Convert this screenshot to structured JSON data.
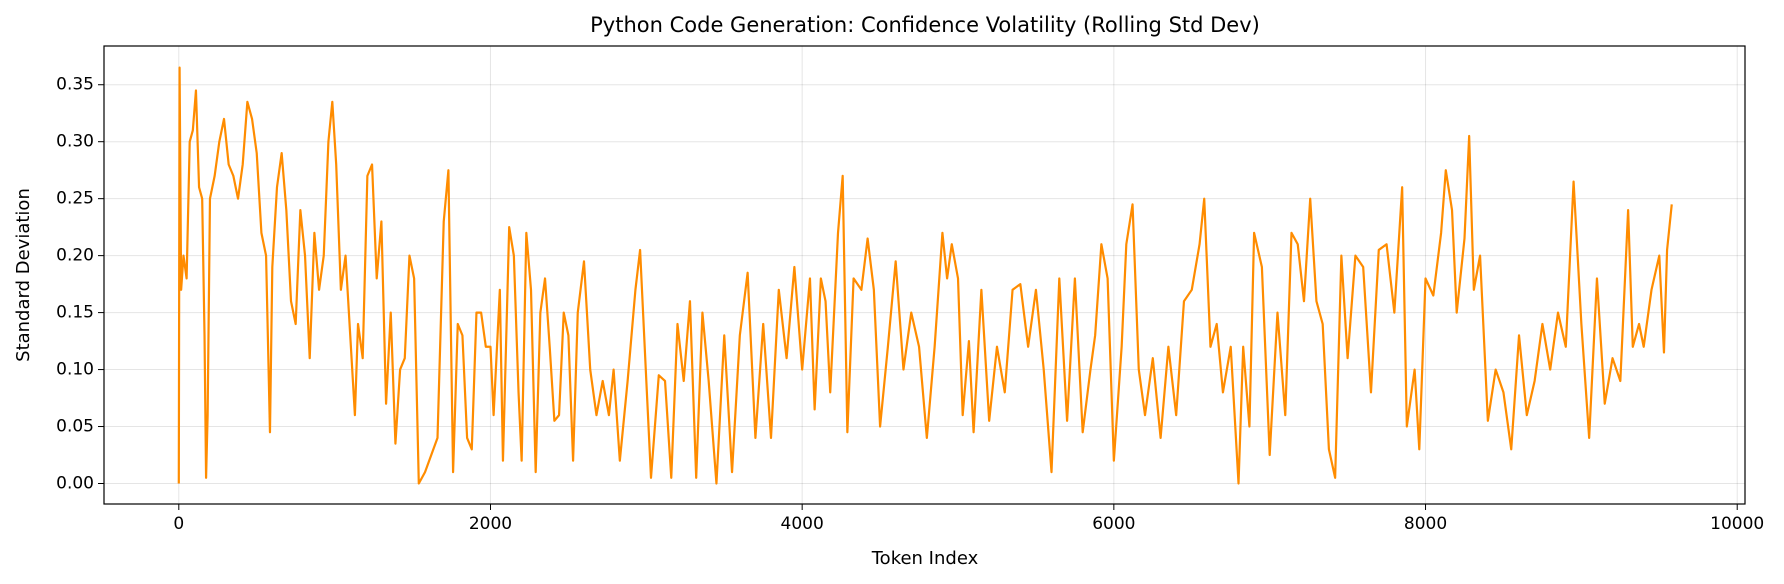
{
  "chart_data": {
    "type": "line",
    "title": "Python Code Generation: Confidence Volatility (Rolling Std Dev)",
    "x_label": "Token Index",
    "y_label": "Standard Deviation",
    "grid": true,
    "xlim": [
      -480,
      10050
    ],
    "ylim": [
      -0.018,
      0.384
    ],
    "xticks": [
      0,
      2000,
      4000,
      6000,
      8000,
      10000
    ],
    "yticks": [
      {
        "value": 0,
        "label": "0.00"
      },
      {
        "value": 0.05,
        "label": "0.05"
      },
      {
        "value": 0.1,
        "label": "0.10"
      },
      {
        "value": 0.15,
        "label": "0.15"
      },
      {
        "value": 0.2,
        "label": "0.20"
      },
      {
        "value": 0.25,
        "label": "0.25"
      },
      {
        "value": 0.3,
        "label": "0.30"
      },
      {
        "value": 0.35,
        "label": "0.35"
      }
    ],
    "series": [
      {
        "color": "#ff8c00",
        "x": [
          0,
          5,
          15,
          30,
          50,
          70,
          90,
          110,
          130,
          150,
          165,
          175,
          185,
          200,
          230,
          260,
          290,
          320,
          350,
          380,
          410,
          440,
          470,
          500,
          530,
          560,
          585,
          600,
          630,
          660,
          690,
          720,
          750,
          780,
          810,
          840,
          870,
          900,
          930,
          960,
          985,
          1010,
          1040,
          1070,
          1100,
          1130,
          1150,
          1180,
          1210,
          1240,
          1270,
          1300,
          1330,
          1360,
          1390,
          1420,
          1450,
          1480,
          1510,
          1540,
          1580,
          1620,
          1660,
          1700,
          1730,
          1760,
          1790,
          1820,
          1850,
          1880,
          1910,
          1940,
          1970,
          2000,
          2020,
          2060,
          2080,
          2120,
          2150,
          2180,
          2200,
          2230,
          2260,
          2290,
          2320,
          2350,
          2380,
          2410,
          2440,
          2470,
          2500,
          2530,
          2560,
          2600,
          2640,
          2680,
          2720,
          2760,
          2790,
          2830,
          2880,
          2930,
          2960,
          3000,
          3030,
          3080,
          3120,
          3160,
          3200,
          3240,
          3280,
          3320,
          3360,
          3400,
          3450,
          3500,
          3550,
          3600,
          3650,
          3700,
          3750,
          3800,
          3850,
          3900,
          3950,
          4000,
          4050,
          4080,
          4120,
          4150,
          4180,
          4230,
          4260,
          4290,
          4330,
          4380,
          4420,
          4460,
          4500,
          4550,
          4600,
          4650,
          4700,
          4750,
          4800,
          4850,
          4900,
          4930,
          4960,
          5000,
          5030,
          5070,
          5100,
          5150,
          5200,
          5250,
          5300,
          5350,
          5400,
          5450,
          5500,
          5550,
          5600,
          5650,
          5700,
          5750,
          5800,
          5850,
          5880,
          5920,
          5960,
          6000,
          6050,
          6080,
          6120,
          6160,
          6200,
          6250,
          6300,
          6350,
          6400,
          6450,
          6500,
          6550,
          6580,
          6620,
          6660,
          6700,
          6750,
          6800,
          6830,
          6870,
          6900,
          6950,
          7000,
          7050,
          7100,
          7140,
          7180,
          7220,
          7260,
          7300,
          7340,
          7380,
          7420,
          7460,
          7500,
          7550,
          7600,
          7650,
          7700,
          7750,
          7800,
          7850,
          7880,
          7930,
          7960,
          8000,
          8050,
          8100,
          8130,
          8170,
          8200,
          8250,
          8280,
          8310,
          8350,
          8400,
          8450,
          8500,
          8550,
          8600,
          8650,
          8700,
          8750,
          8800,
          8850,
          8900,
          8950,
          9000,
          9050,
          9100,
          9150,
          9200,
          9250,
          9300,
          9330,
          9370,
          9400,
          9450,
          9500,
          9530,
          9550,
          9580
        ],
        "values": [
          0,
          0.365,
          0.17,
          0.2,
          0.18,
          0.3,
          0.31,
          0.345,
          0.26,
          0.25,
          0.13,
          0.005,
          0.06,
          0.25,
          0.27,
          0.3,
          0.32,
          0.28,
          0.27,
          0.25,
          0.28,
          0.335,
          0.32,
          0.29,
          0.22,
          0.2,
          0.045,
          0.19,
          0.26,
          0.29,
          0.24,
          0.16,
          0.14,
          0.24,
          0.2,
          0.11,
          0.22,
          0.17,
          0.2,
          0.3,
          0.335,
          0.28,
          0.17,
          0.2,
          0.13,
          0.06,
          0.14,
          0.11,
          0.27,
          0.28,
          0.18,
          0.23,
          0.07,
          0.15,
          0.035,
          0.1,
          0.11,
          0.2,
          0.18,
          0.0,
          0.01,
          0.025,
          0.04,
          0.23,
          0.275,
          0.01,
          0.14,
          0.13,
          0.04,
          0.03,
          0.15,
          0.15,
          0.12,
          0.12,
          0.06,
          0.17,
          0.02,
          0.225,
          0.2,
          0.08,
          0.02,
          0.22,
          0.17,
          0.01,
          0.15,
          0.18,
          0.12,
          0.055,
          0.06,
          0.15,
          0.13,
          0.02,
          0.15,
          0.195,
          0.1,
          0.06,
          0.09,
          0.06,
          0.1,
          0.02,
          0.09,
          0.17,
          0.205,
          0.09,
          0.005,
          0.095,
          0.09,
          0.005,
          0.14,
          0.09,
          0.16,
          0.005,
          0.15,
          0.09,
          0.0,
          0.13,
          0.01,
          0.13,
          0.185,
          0.04,
          0.14,
          0.04,
          0.17,
          0.11,
          0.19,
          0.1,
          0.18,
          0.065,
          0.18,
          0.16,
          0.08,
          0.22,
          0.27,
          0.045,
          0.18,
          0.17,
          0.215,
          0.17,
          0.05,
          0.12,
          0.195,
          0.1,
          0.15,
          0.12,
          0.04,
          0.12,
          0.22,
          0.18,
          0.21,
          0.18,
          0.06,
          0.125,
          0.045,
          0.17,
          0.055,
          0.12,
          0.08,
          0.17,
          0.175,
          0.12,
          0.17,
          0.1,
          0.01,
          0.18,
          0.055,
          0.18,
          0.045,
          0.1,
          0.13,
          0.21,
          0.18,
          0.02,
          0.12,
          0.21,
          0.245,
          0.1,
          0.06,
          0.11,
          0.04,
          0.12,
          0.06,
          0.16,
          0.17,
          0.21,
          0.25,
          0.12,
          0.14,
          0.08,
          0.12,
          0.0,
          0.12,
          0.05,
          0.22,
          0.19,
          0.025,
          0.15,
          0.06,
          0.22,
          0.21,
          0.16,
          0.25,
          0.16,
          0.14,
          0.03,
          0.005,
          0.2,
          0.11,
          0.2,
          0.19,
          0.08,
          0.205,
          0.21,
          0.15,
          0.26,
          0.05,
          0.1,
          0.03,
          0.18,
          0.165,
          0.22,
          0.275,
          0.24,
          0.15,
          0.215,
          0.305,
          0.17,
          0.2,
          0.055,
          0.1,
          0.08,
          0.03,
          0.13,
          0.06,
          0.09,
          0.14,
          0.1,
          0.15,
          0.12,
          0.265,
          0.14,
          0.04,
          0.18,
          0.07,
          0.11,
          0.09,
          0.24,
          0.12,
          0.14,
          0.12,
          0.17,
          0.2,
          0.115,
          0.205,
          0.245
        ]
      }
    ]
  }
}
